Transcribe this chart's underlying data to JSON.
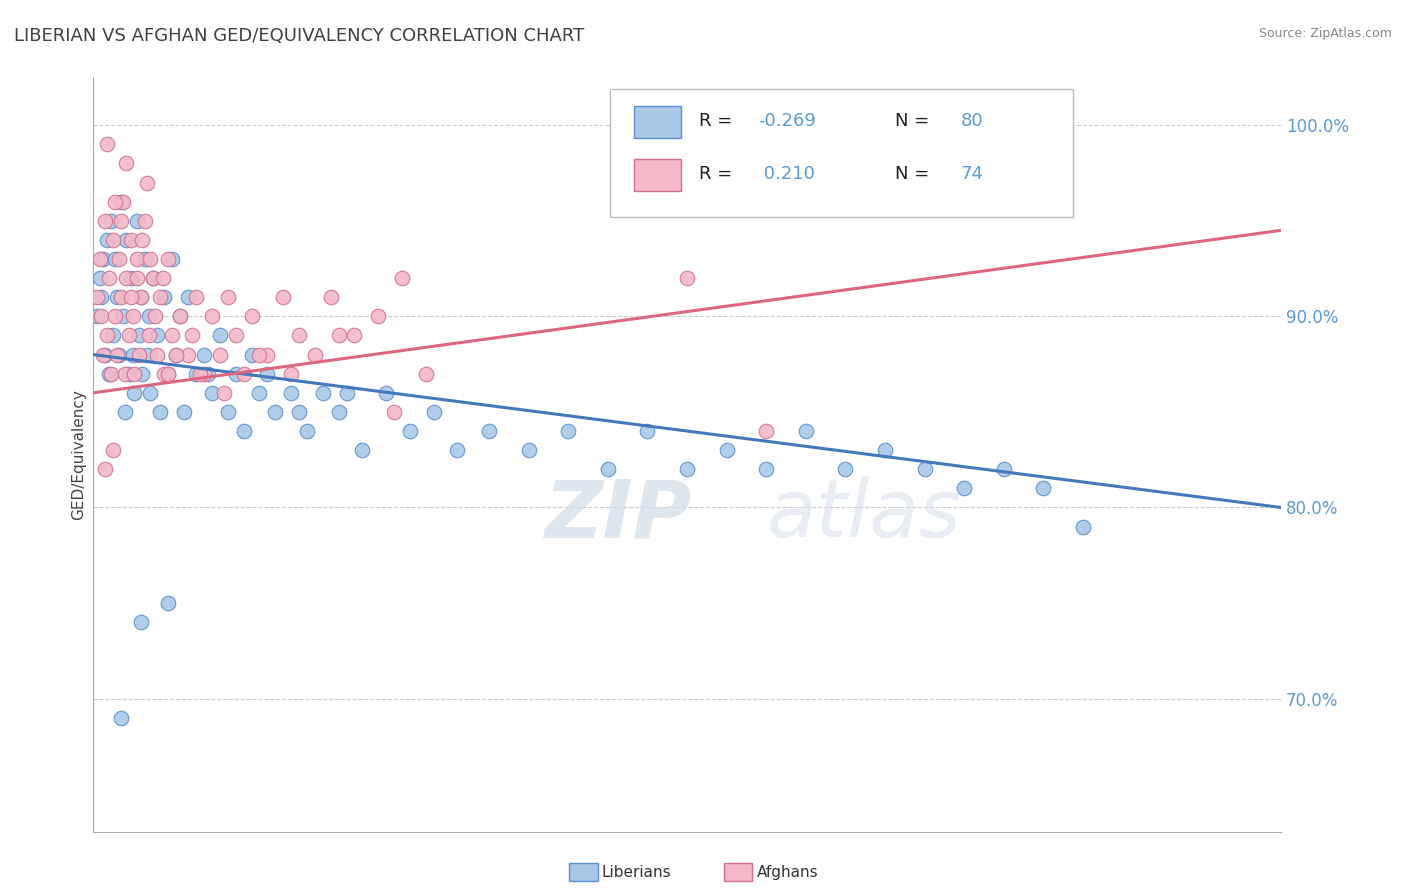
{
  "title": "LIBERIAN VS AFGHAN GED/EQUIVALENCY CORRELATION CHART",
  "source": "Source: ZipAtlas.com",
  "ylabel": "GED/Equivalency",
  "xlim": [
    0.0,
    15.0
  ],
  "ylim": [
    63.0,
    102.5
  ],
  "yticks": [
    70.0,
    80.0,
    90.0,
    100.0
  ],
  "blue_color": "#A8C8E8",
  "blue_edge": "#5B8FCC",
  "pink_color": "#F4B8C8",
  "pink_edge": "#D07090",
  "trend_blue": "#4477BB",
  "trend_pink": "#DD6680",
  "watermark_color": "#D0DCE8",
  "background_color": "#FFFFFF",
  "grid_color": "#CCCCCC",
  "blue_scatter_x": [
    0.05,
    0.08,
    0.1,
    0.12,
    0.15,
    0.18,
    0.2,
    0.22,
    0.25,
    0.28,
    0.3,
    0.32,
    0.35,
    0.38,
    0.4,
    0.42,
    0.45,
    0.48,
    0.5,
    0.52,
    0.55,
    0.58,
    0.6,
    0.62,
    0.65,
    0.68,
    0.7,
    0.72,
    0.75,
    0.8,
    0.85,
    0.9,
    0.95,
    1.0,
    1.05,
    1.1,
    1.15,
    1.2,
    1.3,
    1.4,
    1.5,
    1.6,
    1.7,
    1.8,
    1.9,
    2.0,
    2.1,
    2.2,
    2.3,
    2.5,
    2.7,
    2.9,
    3.1,
    3.4,
    3.7,
    4.0,
    4.3,
    4.6,
    5.0,
    5.5,
    6.0,
    6.5,
    7.0,
    7.5,
    8.0,
    8.5,
    9.0,
    9.5,
    10.0,
    10.5,
    11.0,
    11.5,
    12.0,
    12.5,
    3.2,
    2.6,
    1.45,
    0.95,
    0.6,
    0.35
  ],
  "blue_scatter_y": [
    90.0,
    92.0,
    91.0,
    93.0,
    88.0,
    94.0,
    87.0,
    95.0,
    89.0,
    93.0,
    91.0,
    88.0,
    96.0,
    90.0,
    85.0,
    94.0,
    87.0,
    92.0,
    88.0,
    86.0,
    95.0,
    89.0,
    91.0,
    87.0,
    93.0,
    88.0,
    90.0,
    86.0,
    92.0,
    89.0,
    85.0,
    91.0,
    87.0,
    93.0,
    88.0,
    90.0,
    85.0,
    91.0,
    87.0,
    88.0,
    86.0,
    89.0,
    85.0,
    87.0,
    84.0,
    88.0,
    86.0,
    87.0,
    85.0,
    86.0,
    84.0,
    86.0,
    85.0,
    83.0,
    86.0,
    84.0,
    85.0,
    83.0,
    84.0,
    83.0,
    84.0,
    82.0,
    84.0,
    82.0,
    83.0,
    82.0,
    84.0,
    82.0,
    83.0,
    82.0,
    81.0,
    82.0,
    81.0,
    79.0,
    86.0,
    85.0,
    87.0,
    75.0,
    74.0,
    69.0
  ],
  "pink_scatter_x": [
    0.05,
    0.08,
    0.1,
    0.12,
    0.15,
    0.18,
    0.2,
    0.22,
    0.25,
    0.28,
    0.3,
    0.32,
    0.35,
    0.38,
    0.4,
    0.42,
    0.45,
    0.48,
    0.5,
    0.52,
    0.55,
    0.58,
    0.6,
    0.65,
    0.7,
    0.75,
    0.8,
    0.85,
    0.9,
    0.95,
    1.0,
    1.1,
    1.2,
    1.3,
    1.4,
    1.5,
    1.6,
    1.7,
    1.8,
    1.9,
    2.0,
    2.2,
    2.4,
    2.6,
    2.8,
    3.0,
    3.3,
    3.6,
    3.9,
    1.25,
    0.68,
    0.42,
    0.28,
    0.18,
    0.55,
    0.35,
    0.72,
    0.48,
    0.62,
    0.78,
    1.05,
    1.35,
    0.88,
    1.65,
    2.1,
    2.5,
    3.1,
    3.8,
    4.2,
    7.5,
    8.5,
    0.25,
    0.15,
    0.95
  ],
  "pink_scatter_y": [
    91.0,
    93.0,
    90.0,
    88.0,
    95.0,
    89.0,
    92.0,
    87.0,
    94.0,
    90.0,
    88.0,
    93.0,
    91.0,
    96.0,
    87.0,
    92.0,
    89.0,
    94.0,
    90.0,
    87.0,
    93.0,
    88.0,
    91.0,
    95.0,
    89.0,
    92.0,
    88.0,
    91.0,
    87.0,
    93.0,
    89.0,
    90.0,
    88.0,
    91.0,
    87.0,
    90.0,
    88.0,
    91.0,
    89.0,
    87.0,
    90.0,
    88.0,
    91.0,
    89.0,
    88.0,
    91.0,
    89.0,
    90.0,
    92.0,
    89.0,
    97.0,
    98.0,
    96.0,
    99.0,
    92.0,
    95.0,
    93.0,
    91.0,
    94.0,
    90.0,
    88.0,
    87.0,
    92.0,
    86.0,
    88.0,
    87.0,
    89.0,
    85.0,
    87.0,
    92.0,
    84.0,
    83.0,
    82.0,
    87.0
  ]
}
